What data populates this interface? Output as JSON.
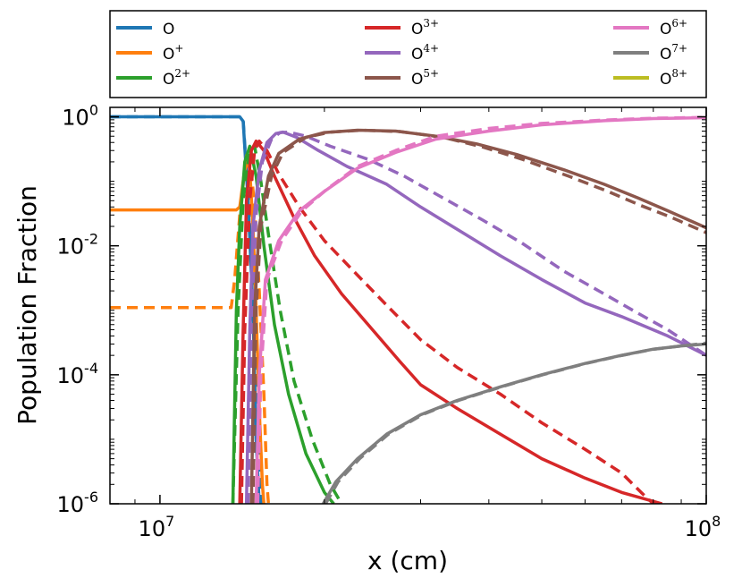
{
  "chart_data": {
    "type": "line",
    "xlabel": "x (cm)",
    "ylabel": "Population Fraction",
    "x_scale": "log",
    "y_scale": "log",
    "xlim": [
      8100000.0,
      100000000.0
    ],
    "ylim": [
      1e-06,
      1.4
    ],
    "x_ticks": [
      {
        "value": 10000000.0,
        "base": "10",
        "exp": "7"
      },
      {
        "value": 100000000.0,
        "base": "10",
        "exp": "8"
      }
    ],
    "y_ticks": [
      {
        "value": 1,
        "base": "10",
        "exp": "0"
      },
      {
        "value": 0.01,
        "base": "10",
        "exp": "-2"
      },
      {
        "value": 0.0001,
        "base": "10",
        "exp": "-4"
      },
      {
        "value": 1e-06,
        "base": "10",
        "exp": "-6"
      }
    ],
    "grid": false,
    "legend_position": "above plot, 3 columns",
    "line_styles": {
      "solid": "primary model",
      "dashed": "comparison model"
    },
    "series": [
      {
        "name": "O",
        "sup": "",
        "color": "#1f77b4",
        "solid": [
          [
            8100000.0,
            1.0
          ],
          [
            14000000.0,
            1.0
          ],
          [
            14200000.0,
            0.85
          ],
          [
            14500000.0,
            0.05
          ],
          [
            14800000.0,
            0.001
          ],
          [
            15000000.0,
            1e-05
          ],
          [
            15200000.0,
            1e-06
          ]
        ],
        "dashed": [
          [
            8100000.0,
            1.0
          ],
          [
            14000000.0,
            1.0
          ],
          [
            14200000.0,
            0.9
          ],
          [
            14500000.0,
            0.06
          ],
          [
            14800000.0,
            0.002
          ],
          [
            15100000.0,
            2e-05
          ],
          [
            15300000.0,
            1e-06
          ]
        ]
      },
      {
        "name": "O",
        "sup": "+",
        "color": "#ff7f0e",
        "solid": [
          [
            8100000.0,
            0.036
          ],
          [
            13800000.0,
            0.036
          ],
          [
            14000000.0,
            0.04
          ],
          [
            14200000.0,
            0.1
          ],
          [
            14400000.0,
            0.25
          ],
          [
            14600000.0,
            0.15
          ],
          [
            14800000.0,
            0.02
          ],
          [
            15000000.0,
            0.001
          ],
          [
            15200000.0,
            3e-05
          ],
          [
            15400000.0,
            2e-06
          ],
          [
            15500000.0,
            1e-06
          ]
        ],
        "dashed": [
          [
            8100000.0,
            0.0011
          ],
          [
            13500000.0,
            0.0011
          ],
          [
            13700000.0,
            0.003
          ],
          [
            14000000.0,
            0.03
          ],
          [
            14300000.0,
            0.15
          ],
          [
            14600000.0,
            0.25
          ],
          [
            14900000.0,
            0.04
          ],
          [
            15200000.0,
            0.002
          ],
          [
            15500000.0,
            5e-05
          ],
          [
            15700000.0,
            2e-06
          ],
          [
            15800000.0,
            1e-06
          ]
        ]
      },
      {
        "name": "O",
        "sup": "2+",
        "color": "#2ca02c",
        "solid": [
          [
            13600000.0,
            1e-06
          ],
          [
            13800000.0,
            0.001
          ],
          [
            14000000.0,
            0.02
          ],
          [
            14300000.0,
            0.2
          ],
          [
            14600000.0,
            0.35
          ],
          [
            15000000.0,
            0.12
          ],
          [
            15500000.0,
            0.01
          ],
          [
            16200000.0,
            0.0006
          ],
          [
            17200000.0,
            5e-05
          ],
          [
            18500000.0,
            6e-06
          ],
          [
            20000000.0,
            1.5e-06
          ],
          [
            20800000.0,
            1e-06
          ]
        ],
        "dashed": [
          [
            13600000.0,
            1e-06
          ],
          [
            13900000.0,
            0.001
          ],
          [
            14200000.0,
            0.05
          ],
          [
            14600000.0,
            0.3
          ],
          [
            14900000.0,
            0.35
          ],
          [
            15300000.0,
            0.1
          ],
          [
            15800000.0,
            0.015
          ],
          [
            16600000.0,
            0.001
          ],
          [
            17600000.0,
            8e-05
          ],
          [
            19000000.0,
            1e-05
          ],
          [
            20500000.0,
            2e-06
          ],
          [
            21500000.0,
            1e-06
          ]
        ]
      },
      {
        "name": "O",
        "sup": "3+",
        "color": "#d62728",
        "solid": [
          [
            14000000.0,
            1e-06
          ],
          [
            14200000.0,
            0.0005
          ],
          [
            14400000.0,
            0.05
          ],
          [
            14700000.0,
            0.3
          ],
          [
            15000000.0,
            0.42
          ],
          [
            15500000.0,
            0.3
          ],
          [
            16200000.0,
            0.12
          ],
          [
            17500000.0,
            0.03
          ],
          [
            19200000.0,
            0.007
          ],
          [
            21500000.0,
            0.0018
          ],
          [
            24500000.0,
            0.0005
          ],
          [
            27500000.0,
            0.00016
          ],
          [
            30000000.0,
            7e-05
          ],
          [
            35000000.0,
            3e-05
          ],
          [
            42000000.0,
            1.2e-05
          ],
          [
            50000000.0,
            5e-06
          ],
          [
            60000000.0,
            2.5e-06
          ],
          [
            70000000.0,
            1.5e-06
          ],
          [
            83000000.0,
            1e-06
          ]
        ],
        "dashed": [
          [
            14100000.0,
            1e-06
          ],
          [
            14300000.0,
            0.0005
          ],
          [
            14600000.0,
            0.05
          ],
          [
            14900000.0,
            0.3
          ],
          [
            15200000.0,
            0.42
          ],
          [
            15700000.0,
            0.3
          ],
          [
            16500000.0,
            0.13
          ],
          [
            18000000.0,
            0.04
          ],
          [
            20000000.0,
            0.012
          ],
          [
            23000000.0,
            0.0035
          ],
          [
            26000000.0,
            0.0012
          ],
          [
            30000000.0,
            0.00035
          ],
          [
            35000000.0,
            0.00013
          ],
          [
            42000000.0,
            5e-05
          ],
          [
            50000000.0,
            1.8e-05
          ],
          [
            60000000.0,
            7e-06
          ],
          [
            70000000.0,
            3e-06
          ],
          [
            76000000.0,
            1.5e-06
          ],
          [
            80000000.0,
            1e-06
          ]
        ]
      },
      {
        "name": "O",
        "sup": "4+",
        "color": "#9467bd",
        "solid": [
          [
            14400000.0,
            1e-06
          ],
          [
            14600000.0,
            0.0005
          ],
          [
            14800000.0,
            0.02
          ],
          [
            15200000.0,
            0.15
          ],
          [
            15700000.0,
            0.4
          ],
          [
            16300000.0,
            0.55
          ],
          [
            16800000.0,
            0.58
          ],
          [
            17800000.0,
            0.48
          ],
          [
            19500000.0,
            0.3
          ],
          [
            22000000.0,
            0.17
          ],
          [
            26000000.0,
            0.09
          ],
          [
            30000000.0,
            0.04
          ],
          [
            35000000.0,
            0.018
          ],
          [
            42000000.0,
            0.007
          ],
          [
            50000000.0,
            0.003
          ],
          [
            60000000.0,
            0.0013
          ],
          [
            70000000.0,
            0.0008
          ],
          [
            85000000.0,
            0.0004
          ],
          [
            100000000.0,
            0.0002
          ]
        ],
        "dashed": [
          [
            14500000.0,
            1e-06
          ],
          [
            14700000.0,
            0.0005
          ],
          [
            15000000.0,
            0.03
          ],
          [
            15400000.0,
            0.2
          ],
          [
            16000000.0,
            0.45
          ],
          [
            16600000.0,
            0.57
          ],
          [
            17200000.0,
            0.58
          ],
          [
            18500000.0,
            0.5
          ],
          [
            20500000.0,
            0.35
          ],
          [
            24000000.0,
            0.22
          ],
          [
            28000000.0,
            0.12
          ],
          [
            33000000.0,
            0.055
          ],
          [
            39000000.0,
            0.025
          ],
          [
            46000000.0,
            0.011
          ],
          [
            55000000.0,
            0.004
          ],
          [
            65000000.0,
            0.0018
          ],
          [
            75000000.0,
            0.0009
          ],
          [
            85000000.0,
            0.0005
          ],
          [
            100000000.0,
            0.0002
          ]
        ]
      },
      {
        "name": "O",
        "sup": "5+",
        "color": "#8c564b",
        "solid": [
          [
            14700000.0,
            1e-06
          ],
          [
            14900000.0,
            0.001
          ],
          [
            15200000.0,
            0.02
          ],
          [
            15800000.0,
            0.12
          ],
          [
            16500000.0,
            0.27
          ],
          [
            18000000.0,
            0.45
          ],
          [
            20000000.0,
            0.57
          ],
          [
            23000000.0,
            0.62
          ],
          [
            27000000.0,
            0.6
          ],
          [
            32000000.0,
            0.5
          ],
          [
            38000000.0,
            0.38
          ],
          [
            45000000.0,
            0.26
          ],
          [
            55000000.0,
            0.15
          ],
          [
            65000000.0,
            0.09
          ],
          [
            75000000.0,
            0.055
          ],
          [
            85000000.0,
            0.035
          ],
          [
            100000000.0,
            0.019
          ]
        ],
        "dashed": [
          [
            14800000.0,
            1e-06
          ],
          [
            15000000.0,
            0.001
          ],
          [
            15300000.0,
            0.02
          ],
          [
            16000000.0,
            0.12
          ],
          [
            16800000.0,
            0.28
          ],
          [
            18500000.0,
            0.48
          ],
          [
            20500000.0,
            0.58
          ],
          [
            23500000.0,
            0.62
          ],
          [
            27500000.0,
            0.59
          ],
          [
            33000000.0,
            0.48
          ],
          [
            39000000.0,
            0.34
          ],
          [
            46000000.0,
            0.22
          ],
          [
            56000000.0,
            0.12
          ],
          [
            66000000.0,
            0.07
          ],
          [
            76000000.0,
            0.042
          ],
          [
            86000000.0,
            0.028
          ],
          [
            100000000.0,
            0.016
          ]
        ]
      },
      {
        "name": "O",
        "sup": "6+",
        "color": "#e377c2",
        "solid": [
          [
            15000000.0,
            1e-06
          ],
          [
            15200000.0,
            0.0001
          ],
          [
            15600000.0,
            0.003
          ],
          [
            16500000.0,
            0.012
          ],
          [
            18000000.0,
            0.035
          ],
          [
            20000000.0,
            0.07
          ],
          [
            23000000.0,
            0.16
          ],
          [
            27000000.0,
            0.28
          ],
          [
            32000000.0,
            0.45
          ],
          [
            40000000.0,
            0.6
          ],
          [
            50000000.0,
            0.75
          ],
          [
            65000000.0,
            0.87
          ],
          [
            80000000.0,
            0.94
          ],
          [
            100000000.0,
            0.97
          ]
        ],
        "dashed": [
          [
            15100000.0,
            1e-06
          ],
          [
            15300000.0,
            0.0001
          ],
          [
            15700000.0,
            0.003
          ],
          [
            16700000.0,
            0.012
          ],
          [
            18200000.0,
            0.035
          ],
          [
            20200000.0,
            0.075
          ],
          [
            23000000.0,
            0.17
          ],
          [
            27000000.0,
            0.3
          ],
          [
            32000000.0,
            0.5
          ],
          [
            40000000.0,
            0.66
          ],
          [
            50000000.0,
            0.79
          ],
          [
            65000000.0,
            0.89
          ],
          [
            80000000.0,
            0.95
          ],
          [
            100000000.0,
            0.98
          ]
        ]
      },
      {
        "name": "O",
        "sup": "7+",
        "color": "#7f7f7f",
        "solid": [
          [
            19900000.0,
            1e-06
          ],
          [
            21000000.0,
            2.2e-06
          ],
          [
            23000000.0,
            5e-06
          ],
          [
            26000000.0,
            1.2e-05
          ],
          [
            30000000.0,
            2.4e-05
          ],
          [
            35000000.0,
            4e-05
          ],
          [
            42000000.0,
            6.5e-05
          ],
          [
            50000000.0,
            0.0001
          ],
          [
            60000000.0,
            0.00015
          ],
          [
            70000000.0,
            0.0002
          ],
          [
            80000000.0,
            0.00025
          ],
          [
            90000000.0,
            0.00028
          ],
          [
            100000000.0,
            0.0003
          ]
        ],
        "dashed": [
          [
            20100000.0,
            1e-06
          ],
          [
            21200000.0,
            2.2e-06
          ],
          [
            23200000.0,
            5e-06
          ],
          [
            26200000.0,
            1.2e-05
          ],
          [
            30200000.0,
            2.4e-05
          ],
          [
            35200000.0,
            4e-05
          ],
          [
            42200000.0,
            6.5e-05
          ],
          [
            50200000.0,
            0.0001
          ],
          [
            60200000.0,
            0.00015
          ],
          [
            70200000.0,
            0.0002
          ],
          [
            80200000.0,
            0.00025
          ],
          [
            90200000.0,
            0.00028
          ],
          [
            100000000.0,
            0.00031
          ]
        ]
      },
      {
        "name": "O",
        "sup": "8+",
        "color": "#bcbd22",
        "solid": [],
        "dashed": []
      }
    ]
  }
}
